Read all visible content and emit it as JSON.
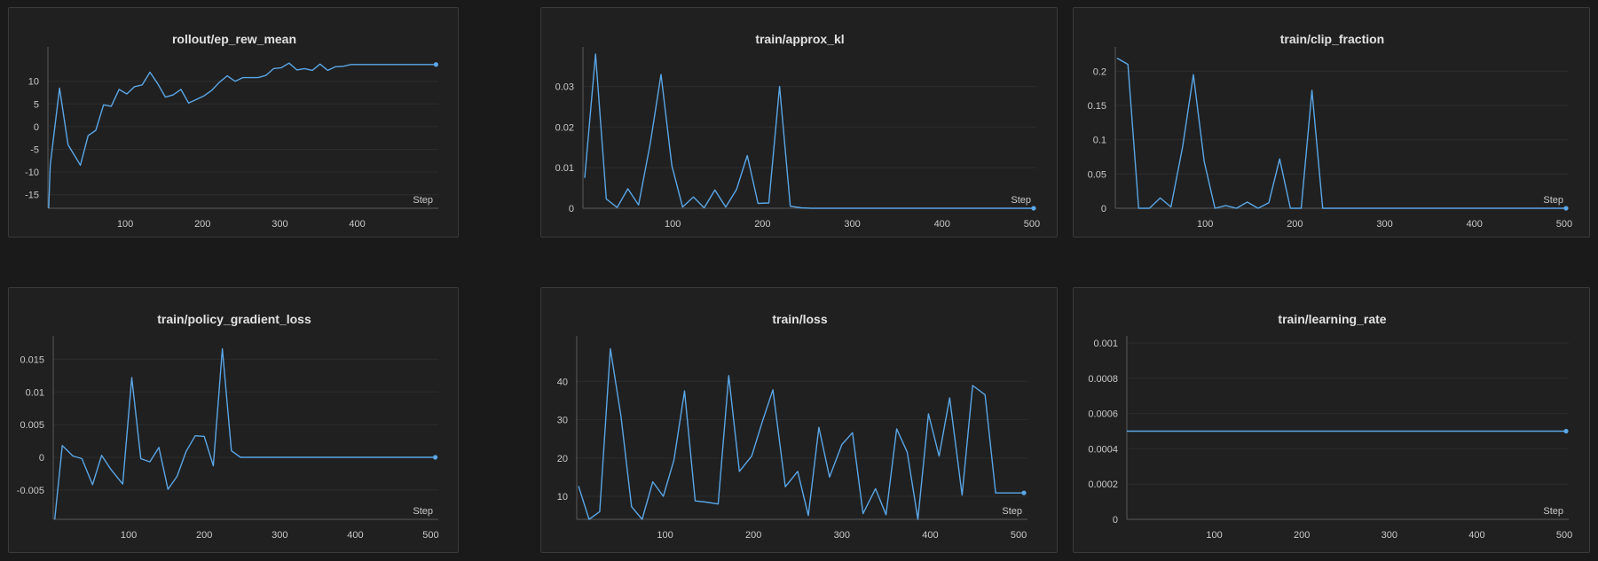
{
  "theme": {
    "background": "#1a1a1a",
    "panel": "#202020",
    "line": "#5aa6e6"
  },
  "chart_data": [
    {
      "type": "line",
      "title": "rollout/ep_rew_mean",
      "xlabel": "Step",
      "xlim": [
        0,
        505
      ],
      "ylim": [
        -18,
        16
      ],
      "xticks": [
        100,
        200,
        300,
        400
      ],
      "yticks": [
        -15,
        -10,
        -5,
        0,
        5,
        10
      ],
      "ytick_labels": [
        "-15",
        "-10",
        "-5",
        "0",
        "5",
        "10"
      ],
      "x": [
        1,
        3,
        15,
        26,
        42,
        52,
        62,
        72,
        82,
        92,
        102,
        112,
        122,
        132,
        142,
        152,
        162,
        172,
        182,
        192,
        202,
        212,
        222,
        232,
        242,
        252,
        262,
        272,
        282,
        292,
        302,
        312,
        322,
        332,
        342,
        352,
        362,
        372,
        382,
        392,
        402,
        412,
        422,
        432,
        442,
        452,
        462,
        472,
        482,
        492,
        502
      ],
      "y": [
        -18,
        -8.5,
        8.5,
        -4,
        -8.5,
        -2,
        -0.8,
        4.8,
        4.5,
        8.2,
        7.2,
        8.8,
        9.2,
        12,
        9.5,
        6.5,
        7.0,
        8.2,
        5.2,
        6.0,
        6.8,
        8.0,
        9.8,
        11.2,
        10.0,
        10.8,
        10.8,
        10.8,
        11.3,
        12.8,
        13.0,
        14.0,
        12.5,
        12.8,
        12.4,
        13.8,
        12.4,
        13.2,
        13.3,
        13.7,
        13.7,
        13.7,
        13.7,
        13.7,
        13.7,
        13.7,
        13.7,
        13.7,
        13.7,
        13.7,
        13.7
      ]
    },
    {
      "type": "line",
      "title": "train/approx_kl",
      "xlabel": "Step",
      "xlim": [
        0,
        505
      ],
      "ylim": [
        0,
        0.038
      ],
      "xticks": [
        100,
        200,
        300,
        400,
        500
      ],
      "yticks": [
        0,
        0.01,
        0.02,
        0.03
      ],
      "ytick_labels": [
        "0",
        "0.01",
        "0.02",
        "0.03"
      ],
      "x": [
        2,
        14,
        26,
        38,
        50,
        62,
        75,
        87,
        99,
        111,
        123,
        135,
        147,
        159,
        171,
        183,
        195,
        207,
        219,
        231,
        243,
        255,
        267,
        300,
        350,
        400,
        450,
        502
      ],
      "y": [
        0.0075,
        0.038,
        0.0023,
        0.0002,
        0.0048,
        0.0008,
        0.016,
        0.033,
        0.0105,
        0.0003,
        0.0028,
        0.0001,
        0.0045,
        0.0003,
        0.0046,
        0.013,
        0.0012,
        0.0013,
        0.03,
        0.0005,
        0.0001,
        0,
        0,
        0,
        0,
        0,
        0,
        0
      ]
    },
    {
      "type": "line",
      "title": "train/clip_fraction",
      "xlabel": "Step",
      "xlim": [
        0,
        505
      ],
      "ylim": [
        0,
        0.225
      ],
      "xticks": [
        100,
        200,
        300,
        400,
        500
      ],
      "yticks": [
        0,
        0.05,
        0.1,
        0.15,
        0.2
      ],
      "ytick_labels": [
        "0",
        "0.05",
        "0.1",
        "0.15",
        "0.2"
      ],
      "x": [
        2,
        14,
        26,
        38,
        50,
        62,
        75,
        87,
        99,
        111,
        123,
        135,
        147,
        159,
        171,
        183,
        195,
        207,
        219,
        231,
        243,
        255,
        267,
        300,
        350,
        400,
        450,
        502
      ],
      "y": [
        0.219,
        0.21,
        0,
        0,
        0.015,
        0.002,
        0.09,
        0.195,
        0.068,
        0,
        0.004,
        0,
        0.009,
        0,
        0.008,
        0.072,
        0,
        0,
        0.172,
        0,
        0,
        0,
        0,
        0,
        0,
        0,
        0,
        0
      ]
    },
    {
      "type": "line",
      "title": "train/policy_gradient_loss",
      "xlabel": "Step",
      "xlim": [
        0,
        510
      ],
      "ylim": [
        -0.0095,
        0.0175
      ],
      "xticks": [
        100,
        200,
        300,
        400,
        500
      ],
      "yticks": [
        -0.005,
        0,
        0.005,
        0.01,
        0.015
      ],
      "ytick_labels": [
        "-0.005",
        "0",
        "0.005",
        "0.01",
        "0.015"
      ],
      "x": [
        2,
        12,
        26,
        38,
        52,
        64,
        76,
        92,
        104,
        116,
        128,
        140,
        152,
        164,
        176,
        188,
        200,
        212,
        224,
        236,
        248,
        260,
        272,
        300,
        350,
        400,
        450,
        506
      ],
      "y": [
        -0.0095,
        0.0018,
        0.0002,
        -0.0002,
        -0.0042,
        0.0003,
        -0.0018,
        -0.0041,
        0.0122,
        -0.0002,
        -0.0007,
        0.0015,
        -0.0049,
        -0.0029,
        0.0009,
        0.0033,
        0.0032,
        -0.0013,
        0.0166,
        0.001,
        0,
        0,
        0,
        0,
        0,
        0,
        0,
        0
      ]
    },
    {
      "type": "line",
      "title": "train/loss",
      "xlabel": "Step",
      "xlim": [
        0,
        510
      ],
      "ylim": [
        4,
        50
      ],
      "xticks": [
        100,
        200,
        300,
        400,
        500
      ],
      "yticks": [
        10,
        20,
        30,
        40
      ],
      "ytick_labels": [
        "10",
        "20",
        "30",
        "40"
      ],
      "x": [
        2,
        14,
        26,
        38,
        50,
        62,
        74,
        86,
        98,
        110,
        122,
        134,
        146,
        160,
        172,
        184,
        198,
        210,
        222,
        236,
        250,
        262,
        274,
        286,
        300,
        312,
        324,
        338,
        350,
        362,
        374,
        386,
        398,
        410,
        422,
        436,
        448,
        462,
        474,
        488,
        500,
        506
      ],
      "y": [
        12.7,
        4.0,
        6.0,
        48.5,
        31,
        7.3,
        4.0,
        13.8,
        10.0,
        19.5,
        37.5,
        8.8,
        8.5,
        8.0,
        41.5,
        16.5,
        20.5,
        29.5,
        37.8,
        12.5,
        16.5,
        5.0,
        28.0,
        15.0,
        23.5,
        26.6,
        5.5,
        12.0,
        5.2,
        27.6,
        21.5,
        4.0,
        31.5,
        20.5,
        35.7,
        10.3,
        38.9,
        36.5,
        10.9,
        10.9,
        10.9,
        10.9
      ]
    },
    {
      "type": "line",
      "title": "train/learning_rate",
      "xlabel": "Step",
      "xlim": [
        0,
        505
      ],
      "ylim": [
        0,
        0.001
      ],
      "xticks": [
        100,
        200,
        300,
        400,
        500
      ],
      "yticks": [
        0,
        0.0002,
        0.0004,
        0.0006,
        0.0008,
        0.001
      ],
      "ytick_labels": [
        "0",
        "0.0002",
        "0.0004",
        "0.0006",
        "0.0008",
        "0.001"
      ],
      "x": [
        0,
        502
      ],
      "y": [
        0.0005,
        0.0005
      ]
    }
  ]
}
